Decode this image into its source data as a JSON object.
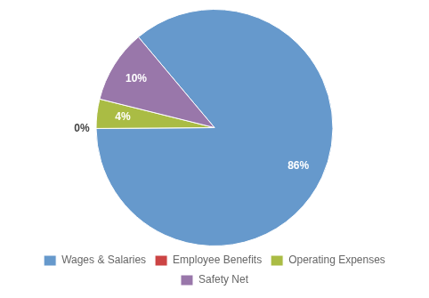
{
  "chart_data": {
    "type": "pie",
    "categories": [
      "Wages & Salaries",
      "Employee Benefits",
      "Operating Expenses",
      "Safety Net"
    ],
    "values": [
      86,
      0,
      4,
      10
    ],
    "value_labels": [
      "86%",
      "0%",
      "4%",
      "10%"
    ],
    "colors": [
      "#6699CC",
      "#CC4444",
      "#AABC44",
      "#9977AA"
    ],
    "data_labels": true,
    "legend": "bottom"
  }
}
